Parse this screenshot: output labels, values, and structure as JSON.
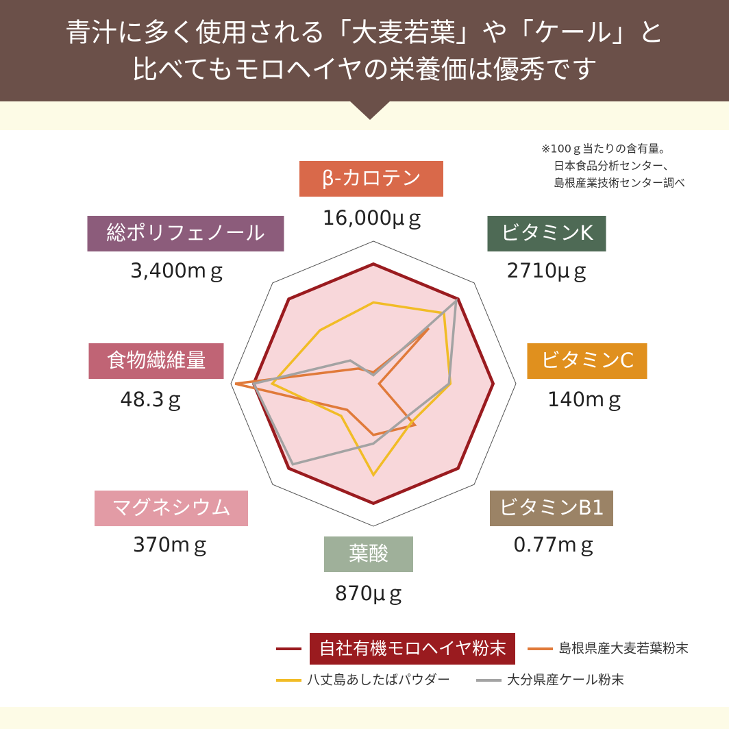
{
  "chart_data": {
    "type": "radar",
    "title": [
      "青汁に多く使用される「大麦若葉」や「ケール」と",
      "比べてもモロヘイヤの栄養価は優秀です"
    ],
    "note": [
      "※100ｇ当たりの含有量。",
      "日本食品分析センター、",
      "島根産業技術センター調べ"
    ],
    "categories": [
      "β-カロテン",
      "ビタミンK",
      "ビタミンC",
      "ビタミンB1",
      "葉酸",
      "マグネシウム",
      "食物繊維量",
      "総ポリフェノール"
    ],
    "category_colors": [
      "#d9694a",
      "#4e6a55",
      "#e0901e",
      "#9b8366",
      "#9fb09a",
      "#e29ba5",
      "#c06475",
      "#8c5c7b"
    ],
    "category_values": [
      "16,000μｇ",
      "2710μｇ",
      "140mｇ",
      "0.77mｇ",
      "870μｇ",
      "370mｇ",
      "48.3ｇ",
      "3,400mｇ"
    ],
    "rlim": [
      0,
      100
    ],
    "series": [
      {
        "name": "自社有機モロヘイヤ粉末",
        "color": "#9a1b1f",
        "fill": "#f8d7da",
        "values": [
          84,
          84,
          84,
          84,
          84,
          84,
          84,
          84
        ]
      },
      {
        "name": "島根県産大麦若葉粉末",
        "color": "#e07a3a",
        "values": [
          8,
          55,
          4,
          41,
          36,
          26,
          97,
          15
        ]
      },
      {
        "name": "八丈島あしたばパウダー",
        "color": "#f1bc26",
        "values": [
          57,
          70,
          54,
          38,
          64,
          32,
          71,
          53
        ]
      },
      {
        "name": "大分県産ケール粉末",
        "color": "#a3a3a3",
        "values": [
          6,
          82,
          53,
          33,
          42,
          80,
          84,
          23
        ]
      }
    ]
  }
}
